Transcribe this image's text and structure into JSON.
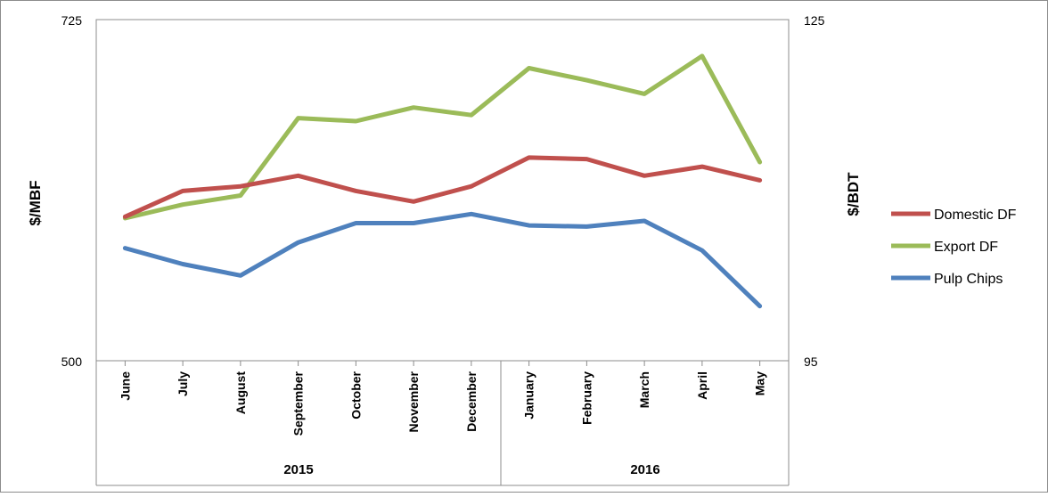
{
  "chart_data": {
    "type": "line",
    "categories": [
      "June",
      "July",
      "August",
      "September",
      "October",
      "November",
      "December",
      "January",
      "February",
      "March",
      "April",
      "May"
    ],
    "category_groups": [
      {
        "label": "2015",
        "count": 7
      },
      {
        "label": "2016",
        "count": 5
      }
    ],
    "series": [
      {
        "name": "Domestic DF",
        "axis": "left",
        "color": "#c0504d",
        "values": [
          595,
          612,
          615,
          622,
          612,
          605,
          615,
          634,
          633,
          622,
          628,
          619
        ]
      },
      {
        "name": "Export DF",
        "axis": "left",
        "color": "#9bbb59",
        "values": [
          594,
          603,
          609,
          660,
          658,
          667,
          662,
          693,
          685,
          676,
          701,
          631
        ]
      },
      {
        "name": "Pulp Chips",
        "axis": "right",
        "color": "#4f81bd",
        "values": [
          104.9,
          103.5,
          102.5,
          105.4,
          107.1,
          107.1,
          107.9,
          106.9,
          106.8,
          107.3,
          104.7,
          99.8
        ]
      }
    ],
    "y_left": {
      "label": "$/MBF",
      "min": 500,
      "max": 725,
      "tick_labels": [
        "725",
        "500"
      ]
    },
    "y_right": {
      "label": "$/BDT",
      "min": 95,
      "max": 125,
      "tick_labels": [
        "125",
        "95"
      ]
    },
    "legend_position": "right",
    "grid": false
  }
}
